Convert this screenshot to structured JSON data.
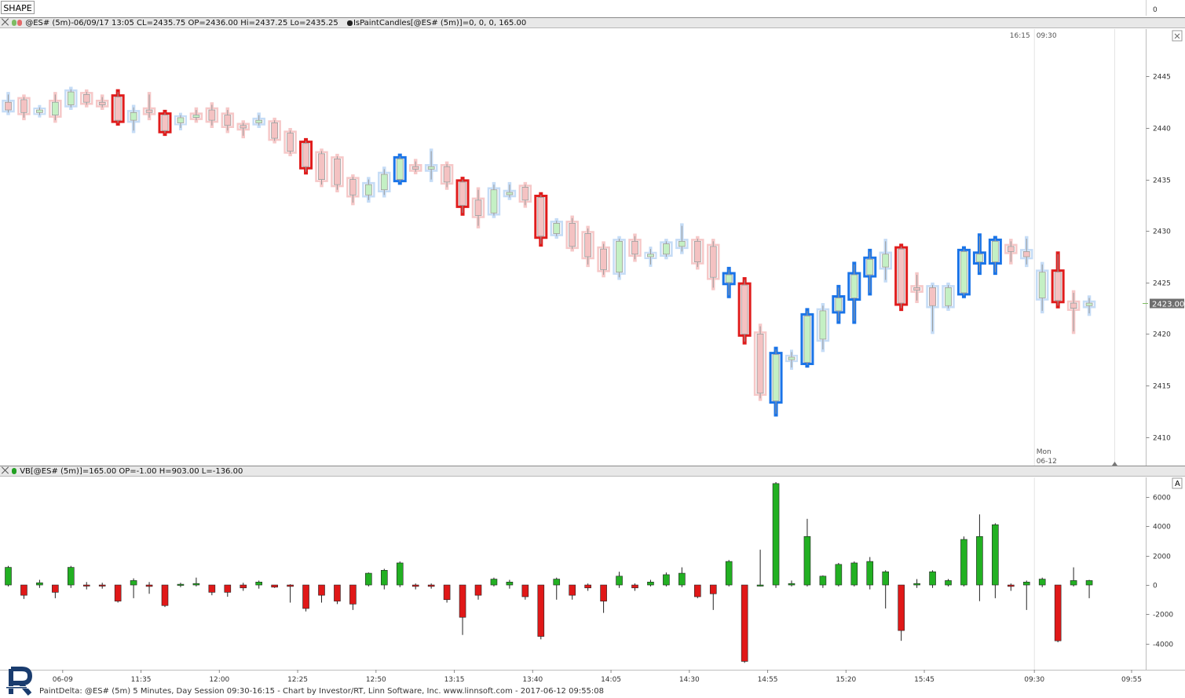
{
  "toolbar": {
    "shape_label": "SHAPE"
  },
  "price_panel": {
    "title": "@ES# (5m)-06/09/17 13:05 CL=2435.75 OP=2436.00 Hi=2437.25 Lo=2435.25",
    "study_title": "IsPaintCandles[@ES# (5m)]=0, 0, 0, 165.00",
    "last_price_label": "2423.00",
    "session_time_labels": [
      "16:15",
      "09:30"
    ],
    "day_label": "Mon",
    "date_label": "06-12"
  },
  "volume_panel": {
    "title": "VB[@ES# (5m)]=165.00 OP=-1.00 H=903.00 L=-136.00",
    "scale_button": "A"
  },
  "top_scale_label": "0",
  "footer": {
    "text": "PaintDelta: @ES# (5m) 5 Minutes, Day Session 09:30-16:15 - Chart by Investor/RT, Linn Software, Inc. www.linnsoft.com - 2017-06-12 09:55:08"
  },
  "colors": {
    "up_fill": "#c4f0c4",
    "down_fill": "#f4c2c2",
    "blue_strong": "#1a74e8",
    "blue_light": "#c5dcf6",
    "red_strong": "#e01c1c",
    "red_light": "#f6c8c8",
    "delta_up": "#22b022",
    "delta_down": "#e01818"
  },
  "chart_data": {
    "type": "candlestick",
    "price_axis": {
      "ticks": [
        2410,
        2415,
        2420,
        2425,
        2430,
        2435,
        2440,
        2445
      ],
      "ylim": [
        2407.3,
        2449.3
      ]
    },
    "delta_axis": {
      "ticks": [
        -4000,
        -2000,
        0,
        2000,
        4000,
        6000
      ],
      "ylim": [
        -5500,
        7000
      ]
    },
    "time_labels": [
      "06-09",
      "11:35",
      "12:00",
      "12:25",
      "12:50",
      "13:15",
      "13:40",
      "14:05",
      "14:30",
      "14:55",
      "15:20",
      "15:45",
      "09:30",
      "09:55"
    ],
    "candles": [
      {
        "o": 2442.5,
        "h": 2443.25,
        "l": 2441.5,
        "c": 2441.75,
        "shade": "bl",
        "d": 1200,
        "dh": 1300,
        "dl": -100
      },
      {
        "o": 2442.75,
        "h": 2443.0,
        "l": 2441.0,
        "c": 2441.5,
        "shade": "rl",
        "d": -700,
        "dh": -150,
        "dl": -950
      },
      {
        "o": 2441.5,
        "h": 2442.0,
        "l": 2441.25,
        "c": 2441.75,
        "shade": "gl",
        "d": 150,
        "dh": 350,
        "dl": -200
      },
      {
        "o": 2441.25,
        "h": 2443.25,
        "l": 2440.75,
        "c": 2442.5,
        "shade": "rl",
        "d": -500,
        "dh": -100,
        "dl": -900
      },
      {
        "o": 2442.25,
        "h": 2443.75,
        "l": 2442.0,
        "c": 2443.5,
        "shade": "bl",
        "d": 1200,
        "dh": 1300,
        "dl": -200
      },
      {
        "o": 2443.25,
        "h": 2443.5,
        "l": 2442.25,
        "c": 2442.5,
        "shade": "rl",
        "d": -50,
        "dh": 200,
        "dl": -300
      },
      {
        "o": 2442.5,
        "h": 2443.0,
        "l": 2442.0,
        "c": 2442.25,
        "shade": "rl",
        "d": -50,
        "dh": 150,
        "dl": -250
      },
      {
        "o": 2443.0,
        "h": 2443.5,
        "l": 2440.5,
        "c": 2440.75,
        "shade": "r",
        "d": -1100,
        "dh": -100,
        "dl": -1200
      },
      {
        "o": 2440.75,
        "h": 2442.0,
        "l": 2439.75,
        "c": 2441.5,
        "shade": "bl",
        "d": 300,
        "dh": 450,
        "dl": -900
      },
      {
        "o": 2441.75,
        "h": 2443.25,
        "l": 2441.0,
        "c": 2441.5,
        "shade": "rl",
        "d": -100,
        "dh": 200,
        "dl": -600
      },
      {
        "o": 2441.25,
        "h": 2441.5,
        "l": 2439.5,
        "c": 2439.75,
        "shade": "r",
        "d": -1400,
        "dh": -100,
        "dl": -1500
      },
      {
        "o": 2440.5,
        "h": 2441.25,
        "l": 2440.0,
        "c": 2441.0,
        "shade": "gl",
        "d": 50,
        "dh": 150,
        "dl": -150
      },
      {
        "o": 2441.25,
        "h": 2441.75,
        "l": 2440.75,
        "c": 2441.25,
        "shade": "rl",
        "d": 100,
        "dh": 500,
        "dl": -100
      },
      {
        "o": 2441.75,
        "h": 2442.25,
        "l": 2440.25,
        "c": 2440.75,
        "shade": "rl",
        "d": -500,
        "dh": -100,
        "dl": -700
      },
      {
        "o": 2441.25,
        "h": 2441.75,
        "l": 2439.75,
        "c": 2440.25,
        "shade": "rl",
        "d": -500,
        "dh": -100,
        "dl": -800
      },
      {
        "o": 2440.25,
        "h": 2440.5,
        "l": 2439.25,
        "c": 2440.0,
        "shade": "rl",
        "d": -200,
        "dh": 150,
        "dl": -400
      },
      {
        "o": 2440.5,
        "h": 2441.25,
        "l": 2440.25,
        "c": 2440.75,
        "shade": "bl",
        "d": 200,
        "dh": 300,
        "dl": -250
      },
      {
        "o": 2440.5,
        "h": 2440.75,
        "l": 2438.75,
        "c": 2439.0,
        "shade": "rl",
        "d": -150,
        "dh": -100,
        "dl": -200
      },
      {
        "o": 2439.5,
        "h": 2439.75,
        "l": 2437.5,
        "c": 2437.75,
        "shade": "rl",
        "d": -100,
        "dh": 50,
        "dl": -1200
      },
      {
        "o": 2438.5,
        "h": 2438.75,
        "l": 2435.75,
        "c": 2436.25,
        "shade": "r",
        "d": -1600,
        "dh": -100,
        "dl": -1800
      },
      {
        "o": 2437.5,
        "h": 2437.75,
        "l": 2434.5,
        "c": 2435.0,
        "shade": "rl",
        "d": -700,
        "dh": -100,
        "dl": -1200
      },
      {
        "o": 2437.0,
        "h": 2437.25,
        "l": 2434.0,
        "c": 2434.5,
        "shade": "rl",
        "d": -1100,
        "dh": -100,
        "dl": -1300
      },
      {
        "o": 2435.0,
        "h": 2435.25,
        "l": 2432.75,
        "c": 2433.5,
        "shade": "rl",
        "d": -1300,
        "dh": -100,
        "dl": -1700
      },
      {
        "o": 2433.5,
        "h": 2435.0,
        "l": 2433.0,
        "c": 2434.5,
        "shade": "bl",
        "d": 800,
        "dh": 850,
        "dl": -100
      },
      {
        "o": 2434.0,
        "h": 2436.0,
        "l": 2433.5,
        "c": 2435.5,
        "shade": "bl",
        "d": 1000,
        "dh": 1100,
        "dl": -300
      },
      {
        "o": 2435.0,
        "h": 2437.25,
        "l": 2434.75,
        "c": 2437.0,
        "shade": "b",
        "d": 1500,
        "dh": 1600,
        "dl": -150
      },
      {
        "o": 2436.25,
        "h": 2436.75,
        "l": 2435.75,
        "c": 2436.0,
        "shade": "rl",
        "d": -100,
        "dh": 100,
        "dl": -300
      },
      {
        "o": 2436.0,
        "h": 2437.75,
        "l": 2435.0,
        "c": 2436.25,
        "shade": "bl",
        "d": -100,
        "dh": 100,
        "dl": -250
      },
      {
        "o": 2436.25,
        "h": 2436.5,
        "l": 2434.25,
        "c": 2434.75,
        "shade": "rl",
        "d": -1000,
        "dh": -100,
        "dl": -1200
      },
      {
        "o": 2434.75,
        "h": 2435.0,
        "l": 2431.75,
        "c": 2432.5,
        "shade": "r",
        "d": -2200,
        "dh": -100,
        "dl": -3400
      },
      {
        "o": 2433.0,
        "h": 2434.0,
        "l": 2430.5,
        "c": 2431.5,
        "shade": "rl",
        "d": -700,
        "dh": -100,
        "dl": -1000
      },
      {
        "o": 2431.75,
        "h": 2434.5,
        "l": 2431.5,
        "c": 2434.0,
        "shade": "bl",
        "d": 400,
        "dh": 500,
        "dl": -100
      },
      {
        "o": 2433.75,
        "h": 2434.5,
        "l": 2433.25,
        "c": 2433.75,
        "shade": "bl",
        "d": 200,
        "dh": 350,
        "dl": -250
      },
      {
        "o": 2434.25,
        "h": 2434.5,
        "l": 2432.5,
        "c": 2433.0,
        "shade": "rl",
        "d": -800,
        "dh": -100,
        "dl": -1000
      },
      {
        "o": 2433.25,
        "h": 2433.5,
        "l": 2428.75,
        "c": 2429.5,
        "shade": "r",
        "d": -3500,
        "dh": -100,
        "dl": -3700
      },
      {
        "o": 2429.75,
        "h": 2431.0,
        "l": 2429.5,
        "c": 2430.75,
        "shade": "bl",
        "d": 400,
        "dh": 500,
        "dl": -1000
      },
      {
        "o": 2430.75,
        "h": 2431.25,
        "l": 2428.25,
        "c": 2428.5,
        "shade": "rl",
        "d": -700,
        "dh": -100,
        "dl": -1000
      },
      {
        "o": 2429.75,
        "h": 2430.25,
        "l": 2426.75,
        "c": 2427.5,
        "shade": "rl",
        "d": -200,
        "dh": 100,
        "dl": -400
      },
      {
        "o": 2428.25,
        "h": 2428.75,
        "l": 2425.75,
        "c": 2426.25,
        "shade": "rl",
        "d": -1100,
        "dh": -100,
        "dl": -1900
      },
      {
        "o": 2426.0,
        "h": 2429.25,
        "l": 2425.5,
        "c": 2429.0,
        "shade": "bl",
        "d": 600,
        "dh": 900,
        "dl": -200
      },
      {
        "o": 2429.0,
        "h": 2429.5,
        "l": 2427.25,
        "c": 2427.75,
        "shade": "rl",
        "d": -200,
        "dh": 100,
        "dl": -400
      },
      {
        "o": 2427.5,
        "h": 2428.25,
        "l": 2426.75,
        "c": 2427.75,
        "shade": "gl",
        "d": 200,
        "dh": 350,
        "dl": -100
      },
      {
        "o": 2427.75,
        "h": 2429.0,
        "l": 2427.5,
        "c": 2428.75,
        "shade": "bl",
        "d": 700,
        "dh": 850,
        "dl": -100
      },
      {
        "o": 2428.5,
        "h": 2430.5,
        "l": 2428.0,
        "c": 2429.0,
        "shade": "bl",
        "d": 800,
        "dh": 1200,
        "dl": -150
      },
      {
        "o": 2429.0,
        "h": 2429.25,
        "l": 2426.5,
        "c": 2427.0,
        "shade": "rl",
        "d": -800,
        "dh": -100,
        "dl": -900
      },
      {
        "o": 2428.5,
        "h": 2429.0,
        "l": 2424.5,
        "c": 2425.5,
        "shade": "rl",
        "d": -600,
        "dh": -100,
        "dl": -1700
      },
      {
        "o": 2425.0,
        "h": 2426.25,
        "l": 2423.75,
        "c": 2425.75,
        "shade": "b",
        "d": 1600,
        "dh": 1700,
        "dl": -100
      },
      {
        "o": 2424.75,
        "h": 2425.25,
        "l": 2419.25,
        "c": 2420.0,
        "shade": "r",
        "d": -5200,
        "dh": -100,
        "dl": -5300
      },
      {
        "o": 2420.0,
        "h": 2420.75,
        "l": 2413.75,
        "c": 2414.25,
        "shade": "rl",
        "d": 0,
        "dh": 2400,
        "dl": -100
      },
      {
        "o": 2413.5,
        "h": 2418.5,
        "l": 2412.25,
        "c": 2418.0,
        "shade": "b",
        "d": 6900,
        "dh": 7000,
        "dl": -200
      },
      {
        "o": 2417.5,
        "h": 2418.25,
        "l": 2416.75,
        "c": 2417.75,
        "shade": "gl",
        "d": 100,
        "dh": 300,
        "dl": -100
      },
      {
        "o": 2417.25,
        "h": 2422.25,
        "l": 2417.0,
        "c": 2421.75,
        "shade": "b",
        "d": 3300,
        "dh": 4500,
        "dl": -100
      },
      {
        "o": 2419.5,
        "h": 2422.75,
        "l": 2418.5,
        "c": 2422.25,
        "shade": "bl",
        "d": 600,
        "dh": 650,
        "dl": -200
      },
      {
        "o": 2422.25,
        "h": 2424.5,
        "l": 2421.25,
        "c": 2423.5,
        "shade": "b",
        "d": 1400,
        "dh": 1500,
        "dl": -100
      },
      {
        "o": 2423.5,
        "h": 2426.75,
        "l": 2421.25,
        "c": 2425.75,
        "shade": "b",
        "d": 1500,
        "dh": 1600,
        "dl": -100
      },
      {
        "o": 2425.75,
        "h": 2428.0,
        "l": 2424.0,
        "c": 2427.25,
        "shade": "b",
        "d": 1600,
        "dh": 1900,
        "dl": -300
      },
      {
        "o": 2426.5,
        "h": 2429.0,
        "l": 2425.25,
        "c": 2427.75,
        "shade": "bl",
        "d": 900,
        "dh": 1000,
        "dl": -1600
      },
      {
        "o": 2428.25,
        "h": 2428.5,
        "l": 2422.5,
        "c": 2423.0,
        "shade": "r",
        "d": -3100,
        "dh": -100,
        "dl": -3800
      },
      {
        "o": 2424.5,
        "h": 2425.75,
        "l": 2423.25,
        "c": 2424.25,
        "shade": "rl",
        "d": 100,
        "dh": 400,
        "dl": -200
      },
      {
        "o": 2424.5,
        "h": 2424.75,
        "l": 2420.25,
        "c": 2422.75,
        "shade": "bl",
        "d": 900,
        "dh": 1000,
        "dl": -200
      },
      {
        "o": 2422.75,
        "h": 2424.75,
        "l": 2422.5,
        "c": 2424.5,
        "shade": "bl",
        "d": 300,
        "dh": 400,
        "dl": -100
      },
      {
        "o": 2424.0,
        "h": 2428.25,
        "l": 2423.75,
        "c": 2428.0,
        "shade": "b",
        "d": 3100,
        "dh": 3300,
        "dl": -100
      },
      {
        "o": 2427.0,
        "h": 2429.5,
        "l": 2426.0,
        "c": 2427.75,
        "shade": "b",
        "d": 3300,
        "dh": 4800,
        "dl": -1100
      },
      {
        "o": 2427.0,
        "h": 2429.25,
        "l": 2426.0,
        "c": 2429.0,
        "shade": "b",
        "d": 4100,
        "dh": 4200,
        "dl": -900
      },
      {
        "o": 2428.5,
        "h": 2429.0,
        "l": 2427.0,
        "c": 2428.0,
        "shade": "rl",
        "d": -100,
        "dh": 100,
        "dl": -400
      },
      {
        "o": 2428.0,
        "h": 2429.25,
        "l": 2426.75,
        "c": 2427.5,
        "shade": "bl",
        "d": 200,
        "dh": 300,
        "dl": -1700
      },
      {
        "o": 2423.5,
        "h": 2426.75,
        "l": 2422.25,
        "c": 2426.0,
        "shade": "bl",
        "d": 400,
        "dh": 500,
        "dl": -150
      },
      {
        "o": 2426.0,
        "h": 2427.75,
        "l": 2422.75,
        "c": 2423.25,
        "shade": "r",
        "d": -3800,
        "dh": -100,
        "dl": -3900
      },
      {
        "o": 2423.0,
        "h": 2424.0,
        "l": 2420.25,
        "c": 2422.5,
        "shade": "rl",
        "d": 300,
        "dh": 1200,
        "dl": -100
      },
      {
        "o": 2422.75,
        "h": 2423.5,
        "l": 2422.0,
        "c": 2423.0,
        "shade": "bl",
        "d": 300,
        "dh": 350,
        "dl": -900
      }
    ]
  }
}
